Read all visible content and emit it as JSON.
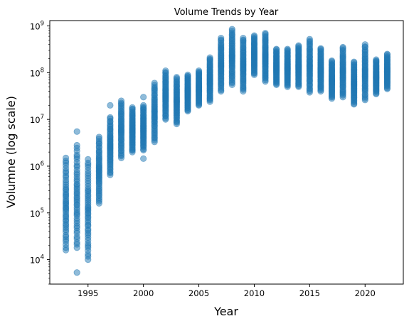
{
  "chart_data": {
    "type": "scatter",
    "title": "Volume Trends by Year",
    "xlabel": "Year",
    "ylabel": "Volumne (log scale)",
    "xlim": [
      1991.55,
      2023.45
    ],
    "ylim": [
      3000,
      1300000000
    ],
    "yscale": "log",
    "grid": false,
    "legend": "none",
    "color": "#1f77b4",
    "alpha": 0.5,
    "x_ticks": [
      {
        "value": 1995,
        "label": "1995"
      },
      {
        "value": 2000,
        "label": "2000"
      },
      {
        "value": 2005,
        "label": "2005"
      },
      {
        "value": 2010,
        "label": "2010"
      },
      {
        "value": 2015,
        "label": "2015"
      },
      {
        "value": 2020,
        "label": "2020"
      }
    ],
    "y_ticks": [
      {
        "value": 10000,
        "base": "10",
        "exp": "4"
      },
      {
        "value": 100000,
        "base": "10",
        "exp": "5"
      },
      {
        "value": 1000000,
        "base": "10",
        "exp": "6"
      },
      {
        "value": 10000000,
        "base": "10",
        "exp": "7"
      },
      {
        "value": 100000000,
        "base": "10",
        "exp": "8"
      },
      {
        "value": 1000000000,
        "base": "10",
        "exp": "9"
      }
    ],
    "series": [
      {
        "x": 1993,
        "min": 16000,
        "max": 1500000,
        "outliers": []
      },
      {
        "x": 1994,
        "min": 18000,
        "max": 2800000,
        "outliers": [
          5300,
          5500000
        ]
      },
      {
        "x": 1995,
        "min": 10000,
        "max": 1400000,
        "outliers": []
      },
      {
        "x": 1996,
        "min": 160000,
        "max": 4200000,
        "outliers": []
      },
      {
        "x": 1997,
        "min": 650000,
        "max": 11000000,
        "outliers": [
          20000000
        ]
      },
      {
        "x": 1998,
        "min": 1500000,
        "max": 25000000,
        "outliers": []
      },
      {
        "x": 1999,
        "min": 2000000,
        "max": 18000000,
        "outliers": []
      },
      {
        "x": 2000,
        "min": 2200000,
        "max": 20000000,
        "outliers": [
          1450000,
          30000000
        ]
      },
      {
        "x": 2001,
        "min": 3300000,
        "max": 60000000,
        "outliers": []
      },
      {
        "x": 2002,
        "min": 10000000,
        "max": 110000000,
        "outliers": []
      },
      {
        "x": 2003,
        "min": 8000000,
        "max": 80000000,
        "outliers": []
      },
      {
        "x": 2004,
        "min": 15000000,
        "max": 90000000,
        "outliers": []
      },
      {
        "x": 2005,
        "min": 20000000,
        "max": 110000000,
        "outliers": []
      },
      {
        "x": 2006,
        "min": 24000000,
        "max": 210000000,
        "outliers": []
      },
      {
        "x": 2007,
        "min": 40000000,
        "max": 550000000,
        "outliers": []
      },
      {
        "x": 2008,
        "min": 55000000,
        "max": 850000000,
        "outliers": []
      },
      {
        "x": 2009,
        "min": 40000000,
        "max": 550000000,
        "outliers": []
      },
      {
        "x": 2010,
        "min": 90000000,
        "max": 620000000,
        "outliers": []
      },
      {
        "x": 2011,
        "min": 65000000,
        "max": 700000000,
        "outliers": []
      },
      {
        "x": 2012,
        "min": 55000000,
        "max": 320000000,
        "outliers": []
      },
      {
        "x": 2013,
        "min": 50000000,
        "max": 320000000,
        "outliers": []
      },
      {
        "x": 2014,
        "min": 50000000,
        "max": 380000000,
        "outliers": []
      },
      {
        "x": 2015,
        "min": 38000000,
        "max": 520000000,
        "outliers": []
      },
      {
        "x": 2016,
        "min": 40000000,
        "max": 330000000,
        "outliers": []
      },
      {
        "x": 2017,
        "min": 28000000,
        "max": 180000000,
        "outliers": []
      },
      {
        "x": 2018,
        "min": 30000000,
        "max": 350000000,
        "outliers": []
      },
      {
        "x": 2019,
        "min": 21000000,
        "max": 170000000,
        "outliers": []
      },
      {
        "x": 2020,
        "min": 26000000,
        "max": 400000000,
        "outliers": []
      },
      {
        "x": 2021,
        "min": 35000000,
        "max": 190000000,
        "outliers": []
      },
      {
        "x": 2022,
        "min": 45000000,
        "max": 250000000,
        "outliers": []
      }
    ]
  }
}
